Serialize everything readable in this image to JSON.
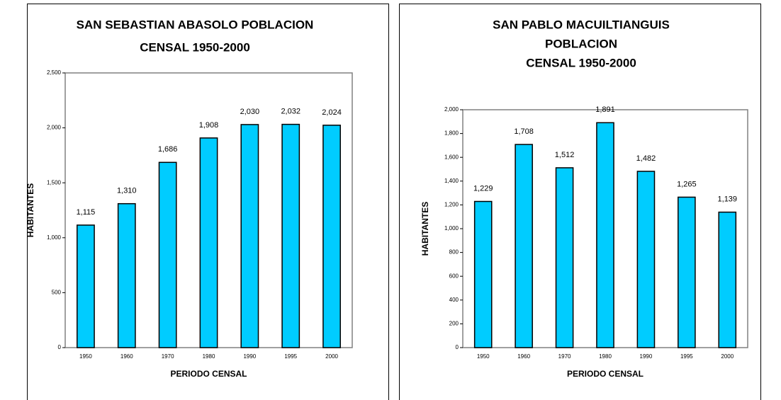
{
  "chart_data": [
    {
      "type": "bar",
      "title": [
        "SAN SEBASTIAN ABASOLO POBLACION",
        "CENSAL 1950-2000"
      ],
      "xlabel": "PERIODO CENSAL",
      "ylabel": "HABITANTES",
      "categories": [
        "1950",
        "1960",
        "1970",
        "1980",
        "1990",
        "1995",
        "2000"
      ],
      "values": [
        1115,
        1310,
        1686,
        1908,
        2030,
        2032,
        2024
      ],
      "value_labels": [
        "1,115",
        "1,310",
        "1,686",
        "1,908",
        "2,030",
        "2,032",
        "2,024"
      ],
      "color": "#00ccff",
      "ylim": [
        0,
        2500
      ],
      "yticks": [
        0,
        500,
        {
          "value": 1000,
          "label": "1,000"
        },
        {
          "value": 1500,
          "label": "1,500"
        },
        {
          "value": 2000,
          "label": "2,000"
        },
        {
          "value": 2500,
          "label": "2,500"
        }
      ]
    },
    {
      "type": "bar",
      "title": [
        "SAN PABLO MACUILTIANGUIS",
        "POBLACION",
        "CENSAL 1950-2000"
      ],
      "xlabel": "PERIODO CENSAL",
      "ylabel": "HABITANTES",
      "categories": [
        "1950",
        "1960",
        "1970",
        "1980",
        "1990",
        "1995",
        "2000"
      ],
      "values": [
        1229,
        1708,
        1512,
        1891,
        1482,
        1265,
        1139
      ],
      "value_labels": [
        "1,229",
        "1,708",
        "1,512",
        "1,891",
        "1,482",
        "1,265",
        "1,139"
      ],
      "color": "#00ccff",
      "ylim": [
        0,
        2000
      ],
      "yticks": [
        0,
        200,
        400,
        600,
        800,
        {
          "value": 1000,
          "label": "1,000"
        },
        {
          "value": 1200,
          "label": "1,200"
        },
        {
          "value": 1400,
          "label": "1,400"
        },
        {
          "value": 1600,
          "label": "1,600"
        },
        {
          "value": 1800,
          "label": "1,800"
        },
        {
          "value": 2000,
          "label": "2,000"
        }
      ]
    }
  ]
}
